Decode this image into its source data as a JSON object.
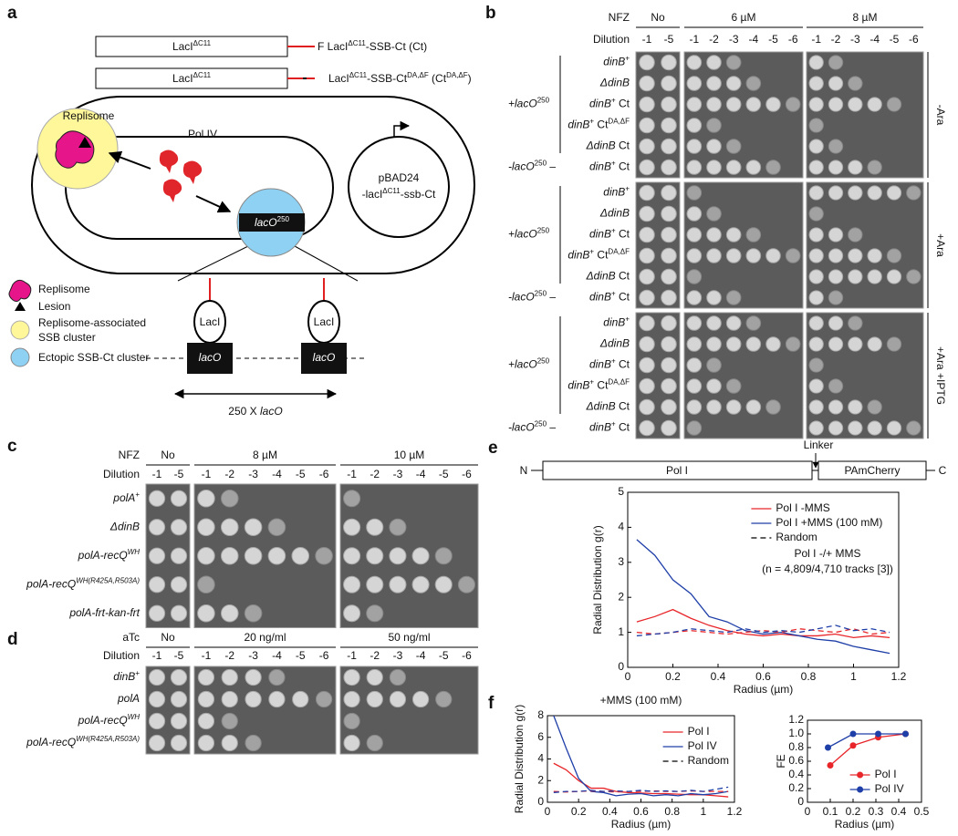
{
  "panel_a": {
    "label": "a",
    "constructs": [
      {
        "box": [
          {
            "text": "LacI"
          },
          {
            "text": "ΔC11",
            "sup": true
          }
        ],
        "label": [
          {
            "text": "F LacI"
          },
          {
            "text": "ΔC11",
            "sup": true
          },
          {
            "text": "-SSB-Ct (Ct)"
          }
        ]
      },
      {
        "box": [
          {
            "text": "LacI"
          },
          {
            "text": "ΔC11",
            "sup": true
          }
        ],
        "label": [
          {
            "text": "LacI"
          },
          {
            "text": "ΔC11",
            "sup": true
          },
          {
            "text": "-SSB-Ct"
          },
          {
            "text": "DA,ΔF",
            "sup": true
          },
          {
            "text": " (Ct"
          },
          {
            "text": "DA,ΔF",
            "sup": true
          },
          {
            "text": ")"
          }
        ]
      }
    ],
    "replisome": "Replisome",
    "pol_iv": "Pol IV",
    "plasmid": [
      "pBAD24",
      [
        {
          "text": "-lacI"
        },
        {
          "text": "ΔC11",
          "sup": true
        },
        {
          "text": "-ssb-Ct"
        }
      ]
    ],
    "lacO_cluster": [
      {
        "text": "lacO",
        "italic": true
      },
      {
        "text": "250",
        "sup": true
      }
    ],
    "legend": {
      "replisome": "Replisome",
      "lesion": "Lesion",
      "replisome_cluster": [
        "Replisome-associated",
        "SSB cluster"
      ],
      "ectopic_cluster": "Ectopic SSB-Ct cluster"
    },
    "laci": [
      "LacI",
      "LacI"
    ],
    "laco": [
      "lacO",
      "lacO"
    ],
    "array": [
      {
        "text": "250 X "
      },
      {
        "text": "lacO",
        "italic": true
      }
    ]
  },
  "panel_b": {
    "label": "b",
    "drug_label": "NFZ",
    "dilution_label": "Dilution",
    "plates": [
      {
        "label": "No",
        "dilutions": [
          "-1",
          "-5"
        ]
      },
      {
        "label": "6 µM",
        "dilutions": [
          "-1",
          "-2",
          "-3",
          "-4",
          "-5",
          "-6"
        ]
      },
      {
        "label": "8 µM",
        "dilutions": [
          "-1",
          "-2",
          "-3",
          "-4",
          "-5",
          "-6"
        ]
      }
    ],
    "blocks": [
      {
        "condition": "-Ara",
        "groups": [
          {
            "label": [
              {
                "text": "+lacO",
                "italic": true
              },
              {
                "text": "250",
                "sup": true
              }
            ],
            "rows": [
              [
                {
                  "text": "dinB",
                  "italic": true
                },
                {
                  "text": "+",
                  "sup": true
                }
              ],
              [
                {
                  "text": "ΔdinB",
                  "italic": true
                }
              ],
              [
                {
                  "text": "dinB",
                  "italic": true
                },
                {
                  "text": "+",
                  "sup": true
                },
                {
                  "text": " Ct"
                }
              ],
              [
                {
                  "text": "dinB",
                  "italic": true
                },
                {
                  "text": "+",
                  "sup": true
                },
                {
                  "text": " Ct"
                },
                {
                  "text": "DA,ΔF",
                  "sup": true
                }
              ],
              [
                {
                  "text": "ΔdinB",
                  "italic": true
                },
                {
                  "text": " Ct"
                }
              ]
            ]
          },
          {
            "label": [
              {
                "text": "-lacO",
                "italic": true
              },
              {
                "text": "250",
                "sup": true
              },
              {
                "text": " –"
              }
            ],
            "rows": [
              [
                {
                  "text": "dinB",
                  "italic": true
                },
                {
                  "text": "+",
                  "sup": true
                },
                {
                  "text": " Ct"
                }
              ]
            ]
          }
        ]
      },
      {
        "condition": "+Ara",
        "groups": [
          {
            "label": [
              {
                "text": "+lacO",
                "italic": true
              },
              {
                "text": "250",
                "sup": true
              }
            ],
            "rows": [
              [
                {
                  "text": "dinB",
                  "italic": true
                },
                {
                  "text": "+",
                  "sup": true
                }
              ],
              [
                {
                  "text": "ΔdinB",
                  "italic": true
                }
              ],
              [
                {
                  "text": "dinB",
                  "italic": true
                },
                {
                  "text": "+",
                  "sup": true
                },
                {
                  "text": " Ct"
                }
              ],
              [
                {
                  "text": "dinB",
                  "italic": true
                },
                {
                  "text": "+",
                  "sup": true
                },
                {
                  "text": " Ct"
                },
                {
                  "text": "DA,ΔF",
                  "sup": true
                }
              ],
              [
                {
                  "text": "ΔdinB",
                  "italic": true
                },
                {
                  "text": " Ct"
                }
              ]
            ]
          },
          {
            "label": [
              {
                "text": "-lacO",
                "italic": true
              },
              {
                "text": "250",
                "sup": true
              },
              {
                "text": " –"
              }
            ],
            "rows": [
              [
                {
                  "text": "dinB",
                  "italic": true
                },
                {
                  "text": "+",
                  "sup": true
                },
                {
                  "text": " Ct"
                }
              ]
            ]
          }
        ]
      },
      {
        "condition": "+Ara +IPTG",
        "groups": [
          {
            "label": [
              {
                "text": "+lacO",
                "italic": true
              },
              {
                "text": "250",
                "sup": true
              }
            ],
            "rows": [
              [
                {
                  "text": "dinB",
                  "italic": true
                },
                {
                  "text": "+",
                  "sup": true
                }
              ],
              [
                {
                  "text": "ΔdinB",
                  "italic": true
                }
              ],
              [
                {
                  "text": "dinB",
                  "italic": true
                },
                {
                  "text": "+",
                  "sup": true
                },
                {
                  "text": " Ct"
                }
              ],
              [
                {
                  "text": "dinB",
                  "italic": true
                },
                {
                  "text": "+",
                  "sup": true
                },
                {
                  "text": " Ct"
                },
                {
                  "text": "DA,ΔF",
                  "sup": true
                }
              ],
              [
                {
                  "text": "ΔdinB",
                  "italic": true
                },
                {
                  "text": " Ct"
                }
              ]
            ]
          },
          {
            "label": [
              {
                "text": "-lacO",
                "italic": true
              },
              {
                "text": "250",
                "sup": true
              },
              {
                "text": " –"
              }
            ],
            "rows": [
              [
                {
                  "text": "dinB",
                  "italic": true
                },
                {
                  "text": "+",
                  "sup": true
                },
                {
                  "text": " Ct"
                }
              ]
            ]
          }
        ]
      }
    ]
  },
  "panel_c": {
    "label": "c",
    "drug_label": "NFZ",
    "dilution_label": "Dilution",
    "plates": [
      {
        "label": "No",
        "dilutions": [
          "-1",
          "-5"
        ]
      },
      {
        "label": "8 µM",
        "dilutions": [
          "-1",
          "-2",
          "-3",
          "-4",
          "-5",
          "-6"
        ]
      },
      {
        "label": "10 µM",
        "dilutions": [
          "-1",
          "-2",
          "-3",
          "-4",
          "-5",
          "-6"
        ]
      }
    ],
    "rows": [
      [
        {
          "text": "polA",
          "italic": true
        },
        {
          "text": "+",
          "sup": true
        }
      ],
      [
        {
          "text": "ΔdinB",
          "italic": true
        }
      ],
      [
        {
          "text": "polA-recQ",
          "italic": true
        },
        {
          "text": "WH",
          "sup": true,
          "italic": true
        }
      ],
      [
        {
          "text": "polA-recQ",
          "italic": true
        },
        {
          "text": "WH(R425A,R503A)",
          "sup": true,
          "italic": true
        }
      ],
      [
        {
          "text": "polA-frt-kan-frt",
          "italic": true
        }
      ]
    ]
  },
  "panel_d": {
    "label": "d",
    "drug_label": "aTc",
    "dilution_label": "Dilution",
    "plates": [
      {
        "label": "No",
        "dilutions": [
          "-1",
          "-5"
        ]
      },
      {
        "label": "20 ng/ml",
        "dilutions": [
          "-1",
          "-2",
          "-3",
          "-4",
          "-5",
          "-6"
        ]
      },
      {
        "label": "50 ng/ml",
        "dilutions": [
          "-1",
          "-2",
          "-3",
          "-4",
          "-5",
          "-6"
        ]
      }
    ],
    "rows": [
      [
        {
          "text": "dinB",
          "italic": true
        },
        {
          "text": "+",
          "sup": true
        }
      ],
      [
        {
          "text": "polA",
          "italic": true
        }
      ],
      [
        {
          "text": "polA-recQ",
          "italic": true
        },
        {
          "text": "WH",
          "sup": true,
          "italic": true
        }
      ],
      [
        {
          "text": "polA-recQ",
          "italic": true
        },
        {
          "text": "WH(R425A,R503A)",
          "sup": true,
          "italic": true
        }
      ]
    ]
  },
  "panel_e": {
    "label": "e",
    "n_term": "N",
    "c_term": "C",
    "domain": "Pol I",
    "linker": "Linker",
    "tag": "PAmCherry"
  },
  "panel_f": {
    "label": "f"
  },
  "chart_data": [
    {
      "type": "line",
      "xlabel": "Radius (µm)",
      "ylabel": "Radial Distribution g(r)",
      "x": [
        0.04,
        0.12,
        0.2,
        0.28,
        0.36,
        0.44,
        0.52,
        0.6,
        0.68,
        0.76,
        0.84,
        0.92,
        1.0,
        1.08,
        1.16
      ],
      "xlim": [
        0,
        1.2
      ],
      "xticks": [
        0,
        0.2,
        0.4,
        0.6,
        0.8,
        1,
        1.2
      ],
      "ylim": [
        0,
        5
      ],
      "yticks": [
        0,
        1,
        2,
        3,
        4,
        5
      ],
      "legend": "upper right",
      "annotations": [
        "Pol I -/+ MMS",
        "(n = 4,809/4,710 tracks [3])"
      ],
      "series": [
        {
          "name": "Pol I -MMS",
          "color": "#e8262a",
          "values": [
            1.3,
            1.45,
            1.65,
            1.4,
            1.2,
            1.05,
            0.95,
            0.9,
            0.95,
            0.9,
            0.9,
            0.95,
            0.85,
            0.9,
            0.85
          ]
        },
        {
          "name": "Pol I +MMS (100 mM)",
          "color": "#1f3fa8",
          "values": [
            3.65,
            3.2,
            2.5,
            2.1,
            1.45,
            1.3,
            1.05,
            0.95,
            1.0,
            0.9,
            0.8,
            0.75,
            0.6,
            0.5,
            0.4
          ]
        },
        {
          "name": "Random",
          "color": "#e8262a",
          "legend_color": "#000000",
          "dash": true,
          "values": [
            1.0,
            0.95,
            1.0,
            1.05,
            1.0,
            0.95,
            1.0,
            1.05,
            1.0,
            1.1,
            1.05,
            1.0,
            1.1,
            0.95,
            1.0
          ]
        },
        {
          "color": "#1f3fa8",
          "dash": true,
          "values": [
            0.9,
            0.95,
            1.0,
            1.1,
            1.05,
            1.0,
            1.1,
            1.0,
            1.05,
            1.0,
            1.1,
            1.2,
            1.05,
            1.1,
            1.0
          ]
        }
      ]
    },
    {
      "type": "line",
      "title": "+MMS (100 mM)",
      "xlabel": "Radius (µm)",
      "ylabel": "Radial Distribution g(r)",
      "x": [
        0.04,
        0.12,
        0.2,
        0.28,
        0.36,
        0.44,
        0.52,
        0.6,
        0.68,
        0.76,
        0.84,
        0.92,
        1.0,
        1.08,
        1.16
      ],
      "xlim": [
        0,
        1.2
      ],
      "xticks": [
        0,
        0.2,
        0.4,
        0.6,
        0.8,
        1,
        1.2
      ],
      "ylim": [
        0,
        8
      ],
      "yticks": [
        0,
        2,
        4,
        6,
        8
      ],
      "legend": "upper right",
      "series": [
        {
          "name": "Pol I",
          "color": "#e8262a",
          "values": [
            3.6,
            3.0,
            2.0,
            1.3,
            1.3,
            1.0,
            0.9,
            0.85,
            0.8,
            0.8,
            0.75,
            0.7,
            0.7,
            0.6,
            0.5
          ]
        },
        {
          "name": "Pol IV",
          "color": "#1f3fa8",
          "values": [
            8.0,
            5.0,
            2.2,
            1.0,
            0.9,
            0.6,
            0.75,
            0.8,
            0.6,
            0.7,
            0.6,
            0.8,
            0.7,
            0.8,
            1.0
          ]
        },
        {
          "name": "Random",
          "color": "#e8262a",
          "legend_color": "#000000",
          "dash": true,
          "values": [
            1.0,
            0.95,
            1.0,
            1.05,
            1.0,
            0.95,
            1.0,
            1.0,
            1.05,
            1.0,
            1.0,
            1.05,
            1.0,
            1.0,
            1.0
          ]
        },
        {
          "color": "#1f3fa8",
          "dash": true,
          "values": [
            0.9,
            1.0,
            1.0,
            1.1,
            1.0,
            1.05,
            1.0,
            1.1,
            1.0,
            1.05,
            1.0,
            1.1,
            1.0,
            1.2,
            1.4
          ]
        }
      ]
    },
    {
      "type": "line",
      "xlabel": "Radius (µm)",
      "ylabel": "FE",
      "xlim": [
        0,
        0.5
      ],
      "xticks": [
        0,
        0.1,
        0.2,
        0.3,
        0.4,
        0.5
      ],
      "ylim": [
        0,
        1.2
      ],
      "yticks": [
        0,
        0.2,
        0.4,
        0.6,
        0.8,
        {
          "value": 1,
          "label": "1.0"
        },
        1.2
      ],
      "legend": "lower right",
      "series": [
        {
          "name": "Pol I",
          "color": "#e8262a",
          "marker": true,
          "x": [
            0.1,
            0.2,
            0.31,
            0.43
          ],
          "values": [
            0.54,
            0.83,
            0.95,
            1.0
          ]
        },
        {
          "name": "Pol IV",
          "color": "#1f3fa8",
          "marker": true,
          "x": [
            0.09,
            0.2,
            0.31,
            0.43
          ],
          "values": [
            0.8,
            1.0,
            1.0,
            1.0
          ]
        }
      ]
    }
  ]
}
